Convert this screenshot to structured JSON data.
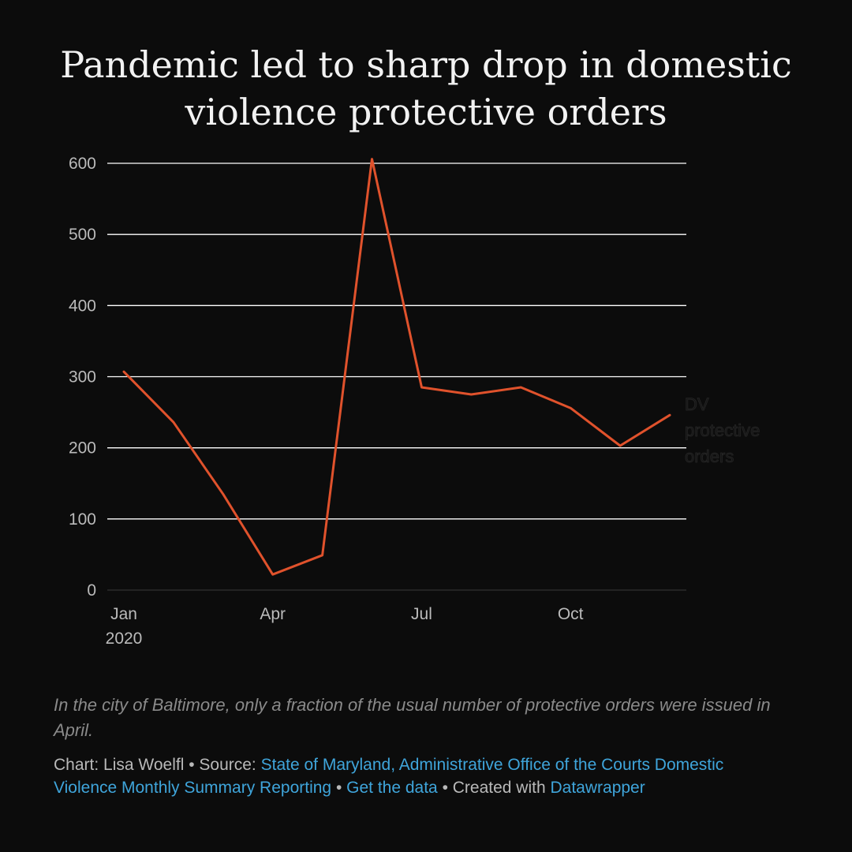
{
  "title": "Pandemic led to sharp drop in domestic violence protective orders",
  "description": "In the city of Baltimore, only a fraction of the usual number of protective orders were issued in April.",
  "footer": {
    "chart_prefix": "Chart: ",
    "author": "Lisa Woelfl",
    "sep1": " • ",
    "source_prefix": "Source: ",
    "source_link": "State of Maryland, Administrative Office of the Courts Domestic Violence Monthly Summary Reporting",
    "sep2": " • ",
    "data_link": "Get the data",
    "sep3": " • ",
    "created_prefix": "Created with ",
    "tool_link": "Datawrapper"
  },
  "colors": {
    "background": "#0c0c0c",
    "line": "#e0522c",
    "grid": "#ffffff",
    "tick_text": "#bbbbbb",
    "link": "#3fa5db"
  },
  "chart_data": {
    "type": "line",
    "title": "Pandemic led to sharp drop in domestic violence protective orders",
    "xlabel": "",
    "ylabel": "",
    "x": [
      "2020-01",
      "2020-02",
      "2020-03",
      "2020-04",
      "2020-05",
      "2020-06",
      "2020-07",
      "2020-08",
      "2020-09",
      "2020-10",
      "2020-11",
      "2020-12"
    ],
    "series": [
      {
        "name": "protective orders",
        "values": [
          307,
          236,
          135,
          22,
          49,
          606,
          285,
          275,
          285,
          256,
          203,
          246
        ]
      }
    ],
    "y_ticks": [
      0,
      100,
      200,
      300,
      400,
      500,
      600
    ],
    "x_tick_labels": [
      {
        "x": "2020-01",
        "lines": [
          "Jan",
          "2020"
        ]
      },
      {
        "x": "2020-04",
        "lines": [
          "Apr"
        ]
      },
      {
        "x": "2020-07",
        "lines": [
          "Jul"
        ]
      },
      {
        "x": "2020-10",
        "lines": [
          "Oct"
        ]
      }
    ],
    "ylim": [
      0,
      600
    ],
    "grid": true,
    "legend": "none",
    "end_label_lines": [
      "DV",
      "protective",
      "orders"
    ]
  }
}
